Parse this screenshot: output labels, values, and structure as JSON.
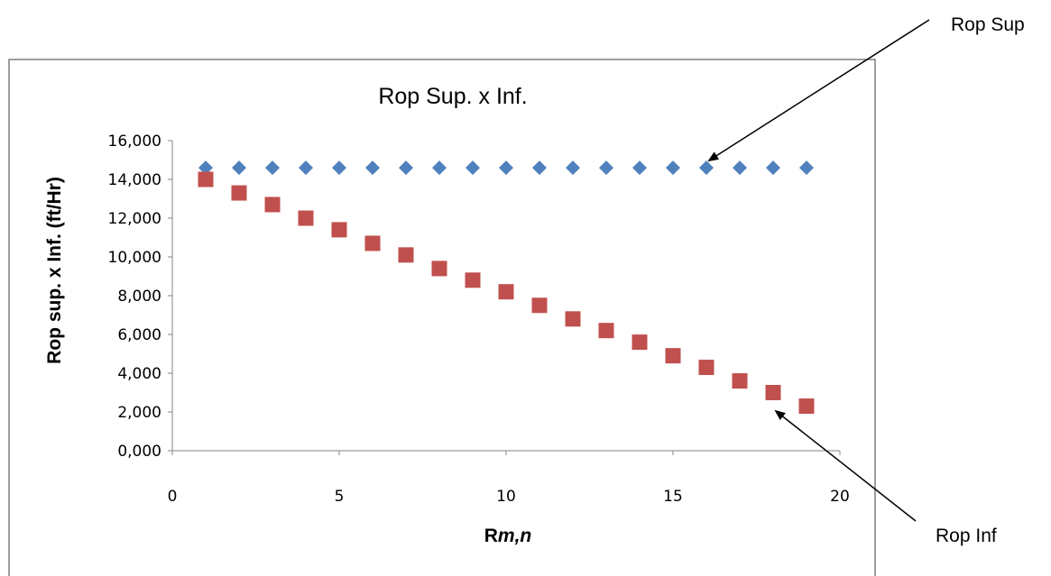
{
  "chart_data": {
    "type": "scatter",
    "title": "Rop Sup. x Inf.",
    "xlabel_main": "R",
    "xlabel_sub": "m,n",
    "ylabel": "Rop sup. x Inf. (ft/Hr)",
    "xlim": [
      0,
      20
    ],
    "ylim": [
      0,
      16000
    ],
    "x_ticks": [
      0,
      5,
      10,
      15,
      20
    ],
    "x_tick_labels": [
      "0",
      "5",
      "10",
      "15",
      "20"
    ],
    "y_ticks": [
      0,
      2000,
      4000,
      6000,
      8000,
      10000,
      12000,
      14000,
      16000
    ],
    "y_tick_labels": [
      "0,000",
      "2,000",
      "4,000",
      "6,000",
      "8,000",
      "10,000",
      "12,000",
      "14,000",
      "16,000"
    ],
    "grid": false,
    "series": [
      {
        "color": "#4F81BD",
        "marker": "diamond",
        "x": [
          1,
          2,
          3,
          4,
          5,
          6,
          7,
          8,
          9,
          10,
          11,
          12,
          13,
          14,
          15,
          16,
          17,
          18,
          19
        ],
        "y": [
          14600,
          14600,
          14600,
          14600,
          14600,
          14600,
          14600,
          14600,
          14600,
          14600,
          14600,
          14600,
          14600,
          14600,
          14600,
          14600,
          14600,
          14600,
          14600
        ]
      },
      {
        "color": "#C0504D",
        "marker": "square",
        "x": [
          1,
          2,
          3,
          4,
          5,
          6,
          7,
          8,
          9,
          10,
          11,
          12,
          13,
          14,
          15,
          16,
          17,
          18,
          19
        ],
        "y": [
          14000,
          13300,
          12700,
          12000,
          11400,
          10700,
          10100,
          9400,
          8800,
          8200,
          7500,
          6800,
          6200,
          5600,
          4900,
          4300,
          3600,
          3000,
          2300
        ]
      }
    ],
    "annotations": [
      {
        "text": "Rop Sup"
      },
      {
        "text": "Rop Inf"
      }
    ]
  }
}
